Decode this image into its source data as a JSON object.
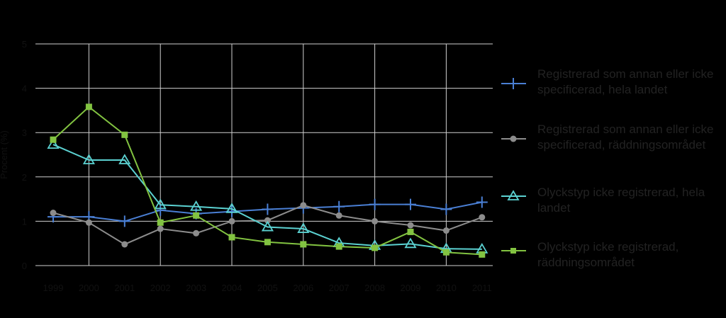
{
  "chart_data": {
    "type": "line",
    "title": "",
    "xlabel": "",
    "ylabel": "Procent (%)",
    "x": [
      "1999",
      "2000",
      "2001",
      "2002",
      "2003",
      "2004",
      "2005",
      "2006",
      "2007",
      "2008",
      "2009",
      "2010",
      "2011"
    ],
    "ylim": [
      0,
      5
    ],
    "yticks": [
      "0",
      "1",
      "2",
      "3",
      "4",
      "5"
    ],
    "grid": true,
    "legend_position": "right",
    "series": [
      {
        "name": "Registrerad som annan eller icke specificerad, hela landet",
        "color": "#4a7fd4",
        "marker": "plus",
        "values": [
          1.1,
          1.1,
          1.0,
          1.25,
          1.17,
          1.22,
          1.27,
          1.3,
          1.33,
          1.38,
          1.38,
          1.27,
          1.43
        ]
      },
      {
        "name": "Registrerad som annan eller icke specificerad, räddningsområdet",
        "color": "#8c8c8c",
        "marker": "circle",
        "values": [
          1.19,
          0.97,
          0.48,
          0.83,
          0.73,
          1.0,
          1.02,
          1.36,
          1.13,
          1.0,
          0.91,
          0.79,
          1.09
        ]
      },
      {
        "name": "Olyckstyp icke registrerad, hela landet",
        "color": "#5bd1d1",
        "marker": "triangle",
        "values": [
          2.73,
          2.38,
          2.38,
          1.37,
          1.33,
          1.28,
          0.87,
          0.83,
          0.51,
          0.45,
          0.49,
          0.38,
          0.37
        ]
      },
      {
        "name": "Olyckstyp icke registrerad, räddningsområdet",
        "color": "#82c341",
        "marker": "square",
        "values": [
          2.84,
          3.58,
          2.95,
          0.97,
          1.13,
          0.64,
          0.53,
          0.48,
          0.43,
          0.4,
          0.76,
          0.3,
          0.25
        ]
      }
    ]
  },
  "legend": {
    "items": [
      {
        "label": "Registrerad som annan eller icke specificerad, hela landet"
      },
      {
        "label": "Registrerad som annan eller icke specificerad, räddningsområdet"
      },
      {
        "label": "Olyckstyp icke registrerad, hela landet"
      },
      {
        "label": "Olyckstyp icke registrerad, räddningsområdet"
      }
    ]
  }
}
